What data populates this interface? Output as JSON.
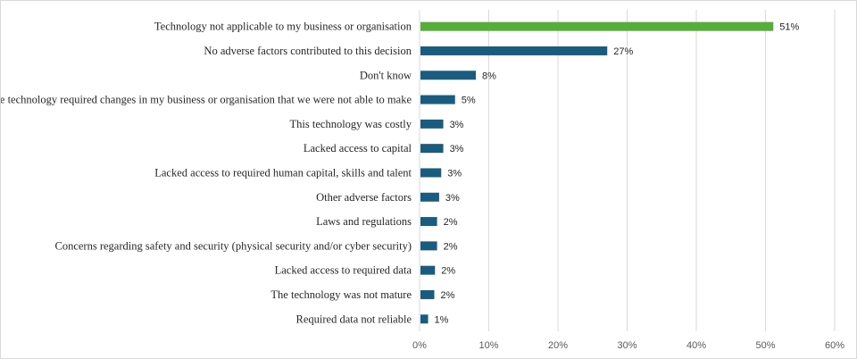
{
  "chart_data": {
    "type": "bar",
    "orientation": "horizontal",
    "title": "",
    "xlabel": "",
    "ylabel": "",
    "categories": [
      "Technology not applicable to my business or organisation",
      "No adverse factors contributed to this decision",
      "Don't know",
      "The technology required changes in my business or organisation that we were not able to make",
      "This technology was costly",
      "Lacked access to capital",
      "Lacked access to required human capital, skills and talent",
      "Other adverse factors",
      "Laws and regulations",
      "Concerns regarding safety and security (physical security and/or cyber security)",
      "Lacked access to required data",
      "The technology was not mature",
      "Required data not reliable"
    ],
    "values": [
      51,
      27,
      8,
      5,
      3.3,
      3.3,
      3.0,
      2.7,
      2.4,
      2.4,
      2.1,
      2.0,
      1.1
    ],
    "value_labels": [
      "51%",
      "27%",
      "8%",
      "5%",
      "3%",
      "3%",
      "3%",
      "3%",
      "2%",
      "2%",
      "2%",
      "2%",
      "1%"
    ],
    "xlim": [
      0,
      60
    ],
    "xticks": [
      0,
      10,
      20,
      30,
      40,
      50,
      60
    ],
    "xtick_labels": [
      "0%",
      "10%",
      "20%",
      "30%",
      "40%",
      "50%",
      "60%"
    ],
    "grid": true,
    "legend": "none",
    "highlight_index": 0,
    "colors": {
      "highlight": "#56ad3a",
      "default": "#1a5c7f"
    }
  }
}
